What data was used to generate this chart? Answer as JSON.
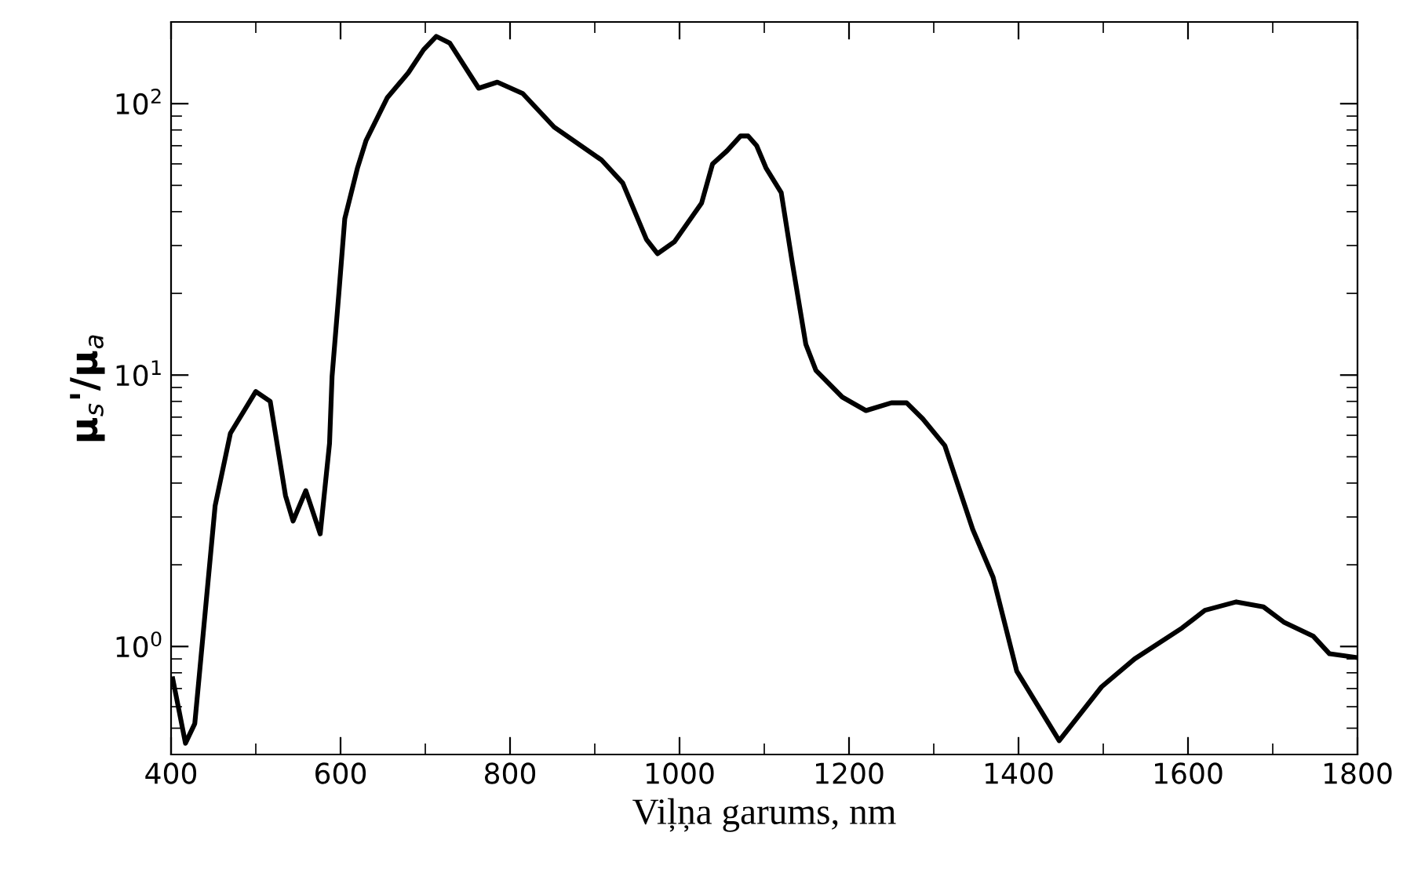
{
  "chart_data": {
    "type": "line",
    "xlabel": "Viļņa garums, nm",
    "ylabel": "μ$_{s}$'/μ$_{a}$",
    "x": [
      402,
      417,
      428,
      452,
      470,
      500,
      517,
      535,
      544,
      559,
      576,
      587,
      590,
      598,
      605,
      620,
      630,
      655,
      680,
      698,
      713,
      729,
      763,
      785,
      815,
      852,
      908,
      933,
      961,
      974,
      994,
      1026,
      1039,
      1056,
      1072,
      1081,
      1091,
      1102,
      1120,
      1133,
      1149,
      1161,
      1192,
      1220,
      1250,
      1268,
      1287,
      1313,
      1346,
      1370,
      1398,
      1448,
      1498,
      1537,
      1593,
      1620,
      1657,
      1689,
      1713,
      1748,
      1767,
      1800
    ],
    "series": [
      {
        "color": "#000000",
        "values": [
          0.76,
          0.44,
          0.52,
          3.3,
          6.1,
          8.7,
          8.0,
          3.6,
          2.9,
          3.75,
          2.6,
          5.6,
          9.9,
          20,
          37.7,
          58,
          73,
          105,
          130,
          158,
          177,
          167,
          114,
          120,
          109,
          82,
          62,
          51,
          31.6,
          28,
          31,
          43,
          60,
          67,
          76,
          76,
          70,
          58,
          47,
          26,
          13,
          10.4,
          8.3,
          7.4,
          7.9,
          7.9,
          6.9,
          5.5,
          2.7,
          1.8,
          0.81,
          0.45,
          0.71,
          0.9,
          1.17,
          1.36,
          1.46,
          1.4,
          1.23,
          1.09,
          0.94,
          0.91
        ]
      }
    ],
    "log": "y",
    "xlim": [
      400,
      1800
    ],
    "xticks": [
      400,
      600,
      800,
      1000,
      1200,
      1400,
      1600,
      1800
    ],
    "ylim": [
      0.4,
      200
    ],
    "yticks": [
      {
        "value": 1,
        "label": "10$^{0}$"
      },
      {
        "value": 10,
        "label": "10$^{1}$"
      },
      {
        "value": 100,
        "label": "10$^{2}$"
      }
    ],
    "grid": false,
    "legend": false,
    "marker": "none",
    "line_style": "solid"
  }
}
